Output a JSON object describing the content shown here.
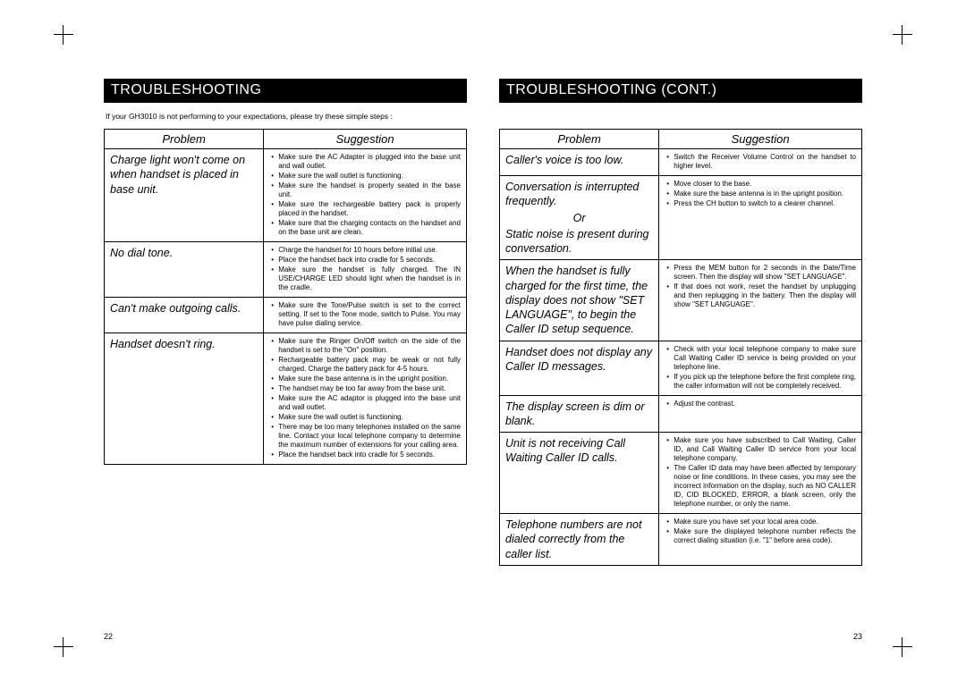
{
  "crop_marks": true,
  "left_page": {
    "header": "TROUBLESHOOTING",
    "intro": "If your GH3010 is not performing to your expectations, please try these simple steps :",
    "columns": {
      "problem": "Problem",
      "suggestion": "Suggestion"
    },
    "rows": [
      {
        "problem": "Charge light won't come on when handset is placed in base unit.",
        "suggestions": [
          "Make sure the AC Adapter is plugged into the base unit and wall outlet.",
          "Make sure the wall outlet is functioning.",
          "Make sure the handset is properly seated in the base unit.",
          "Make sure the rechargeable battery pack is properly placed in the handset.",
          "Make sure that the charging contacts on the handset and on the base unit are clean."
        ]
      },
      {
        "problem": "No dial tone.",
        "suggestions": [
          "Charge the handset for 10 hours before initial use.",
          "Place the handset back into cradle for 5 seconds.",
          "Make sure the handset is fully charged. The IN USE/CHARGE LED should light when the handset is in the cradle."
        ]
      },
      {
        "problem": "Can't make outgoing calls.",
        "suggestions": [
          "Make sure the Tone/Pulse switch is set to the correct setting. If set to the Tone mode, switch to Pulse. You may have pulse dialing service."
        ]
      },
      {
        "problem": "Handset doesn't ring.",
        "suggestions": [
          "Make sure the Ringer On/Off switch on the side of the handset is set to the \"On\" position.",
          "Rechargeable battery pack may be weak or not fully charged. Charge the battery pack for 4-5 hours.",
          "Make sure the base antenna is in the upright position.",
          "The handset may be too far away from the base unit.",
          "Make sure the AC adaptor is plugged into the base unit and wall outlet.",
          "Make sure the wall outlet is functioning.",
          "There may be too many telephones installed on the same line. Contact your local telephone company to determine the maximum number of extensions for your calling area.",
          "Place the handset back into cradle for 5 seconds."
        ]
      }
    ],
    "page_number": "22"
  },
  "right_page": {
    "header": "TROUBLESHOOTING (CONT.)",
    "columns": {
      "problem": "Problem",
      "suggestion": "Suggestion"
    },
    "rows": [
      {
        "problem": "Caller's voice is too low.",
        "suggestions": [
          "Switch the Receiver Volume Control on the handset to higher level."
        ]
      },
      {
        "problem_parts": [
          "Conversation is interrupted frequently.",
          "Or",
          "Static noise is present during conversation."
        ],
        "suggestions": [
          "Move closer to the base.",
          "Make sure the base antenna is in the upright position.",
          "Press the CH button to switch to a clearer channel."
        ]
      },
      {
        "problem": "When the handset is fully charged for the first time, the display does not show \"SET LANGUAGE\", to begin the Caller ID setup sequence.",
        "suggestions": [
          "Press the MEM button for 2 seconds in the Date/Time screen. Then the display will show \"SET LANGUAGE\".",
          "If that does not work, reset the handset by unplugging and then replugging in the battery. Then the display will show \"SET LANGUAGE\"."
        ]
      },
      {
        "problem": "Handset does not display any Caller ID messages.",
        "suggestions": [
          "Check with your local telephone company to make sure Call Waiting Caller ID service is being provided on your telephone line.",
          "If you pick up the telephone before the first complete ring, the caller information will not be completely received."
        ]
      },
      {
        "problem": "The display screen is dim or blank.",
        "suggestions": [
          "Adjust the contrast."
        ]
      },
      {
        "problem": "Unit is not receiving Call Waiting Caller ID calls.",
        "suggestions": [
          "Make sure you have subscribed to Call Waiting, Caller ID, and Call Waiting Caller ID service from your local telephone company.",
          "The Caller ID data may have been affected by temporary noise or line conditions. In these cases, you may see the incorrect information on the display, such as NO CALLER ID, CID BLOCKED, ERROR, a blank screen, only the telephone number, or only the name."
        ]
      },
      {
        "problem": "Telephone numbers are not dialed correctly from the caller list.",
        "suggestions": [
          "Make sure you have set your local area code.",
          "Make sure the displayed telephone number reflects the correct dialing situation (i.e. \"1\" before area code)."
        ]
      }
    ],
    "page_number": "23"
  }
}
